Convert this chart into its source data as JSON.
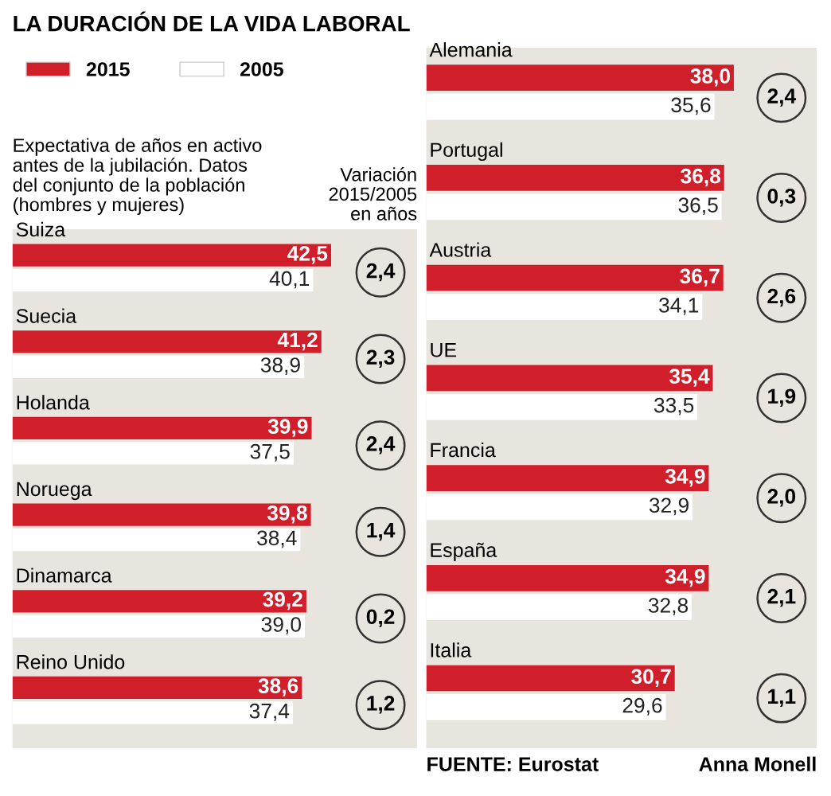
{
  "chart_data": [
    {
      "type": "bar",
      "orientation": "horizontal",
      "title": "LA DURACIÓN DE LA VIDA LABORAL",
      "subtitle": "Expectativa de años en activo\nantes de la jubilación. Datos\ndel conjunto de la población\n(hombres y mujeres)",
      "legend": "top left",
      "categories": [
        "Suiza",
        "Suecia",
        "Holanda",
        "Noruega",
        "Dinamarca",
        "Reino Unido"
      ],
      "series": [
        {
          "name": "2015",
          "color": "#d01f2b",
          "values": [
            42.5,
            41.2,
            39.9,
            39.8,
            39.2,
            38.6
          ],
          "value_labels": [
            "42,5",
            "41,2",
            "39,9",
            "39,8",
            "39,2",
            "38,6"
          ]
        },
        {
          "name": "2005",
          "color": "#ffffff",
          "values": [
            40.1,
            38.9,
            37.5,
            38.4,
            39.0,
            37.4
          ],
          "value_labels": [
            "40,1",
            "38,9",
            "37,5",
            "38,4",
            "39,0",
            "37,4"
          ]
        }
      ],
      "annotations": [
        "2,4",
        "2,3",
        "2,4",
        "1,4",
        "0,2",
        "1,2",
        "Variación\n2015/2005\nen años"
      ]
    },
    {
      "type": "bar",
      "orientation": "horizontal",
      "categories": [
        "Alemania",
        "Portugal",
        "Austria",
        "UE",
        "Francia",
        "España",
        "Italia"
      ],
      "series": [
        {
          "color": "#d01f2b",
          "values": [
            38.0,
            36.8,
            36.7,
            35.4,
            34.9,
            34.9,
            30.7
          ],
          "value_labels": [
            "38,0",
            "36,8",
            "36,7",
            "35,4",
            "34,9",
            "34,9",
            "30,7"
          ]
        },
        {
          "color": "#ffffff",
          "values": [
            35.6,
            36.5,
            34.1,
            33.5,
            32.9,
            32.8,
            29.6
          ],
          "value_labels": [
            "35,6",
            "36,5",
            "34,1",
            "33,5",
            "32,9",
            "32,8",
            "29,6"
          ]
        }
      ],
      "annotations": [
        "2,4",
        "0,3",
        "2,6",
        "1,9",
        "2,0",
        "2,1",
        "1,1",
        "FUENTE: Eurostat",
        "Anna Monell"
      ]
    }
  ]
}
